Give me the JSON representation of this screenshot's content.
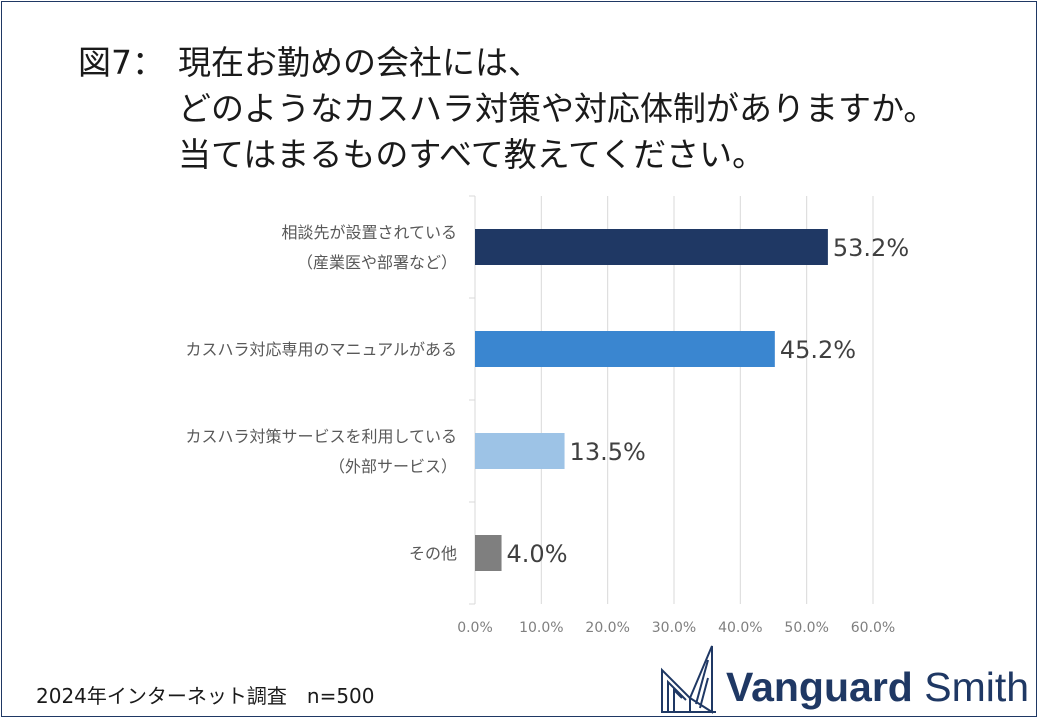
{
  "title": {
    "prefix": "図7：",
    "line1": "現在お勤めの会社には、",
    "line2": "どのようなカスハラ対策や対応体制がありますか。",
    "line3": "当てはまるものすべて教えてください。"
  },
  "footer": "2024年インターネット調査　n=500",
  "logo": {
    "word1": "Vanguard",
    "word2": "Smith"
  },
  "colors": {
    "bar1": "#1f3864",
    "bar2": "#3a86d0",
    "bar3": "#9dc3e6",
    "bar4": "#7f7f7f",
    "grid": "#d9d9d9",
    "frame": "#1f3864"
  },
  "chart_data": {
    "type": "bar",
    "orientation": "horizontal",
    "categories": [
      [
        "相談先が設置されている",
        "（産業医や部署など）"
      ],
      [
        "カスハラ対応専用のマニュアルがある"
      ],
      [
        "カスハラ対策サービスを利用している",
        "（外部サービス）"
      ],
      [
        "その他"
      ]
    ],
    "values": [
      53.2,
      45.2,
      13.5,
      4.0
    ],
    "value_labels": [
      "53.2%",
      "45.2%",
      "13.5%",
      "4.0%"
    ],
    "xlim": [
      0,
      60
    ],
    "ticks": [
      "0.0%",
      "10.0%",
      "20.0%",
      "30.0%",
      "40.0%",
      "50.0%",
      "60.0%"
    ],
    "grid": true
  }
}
